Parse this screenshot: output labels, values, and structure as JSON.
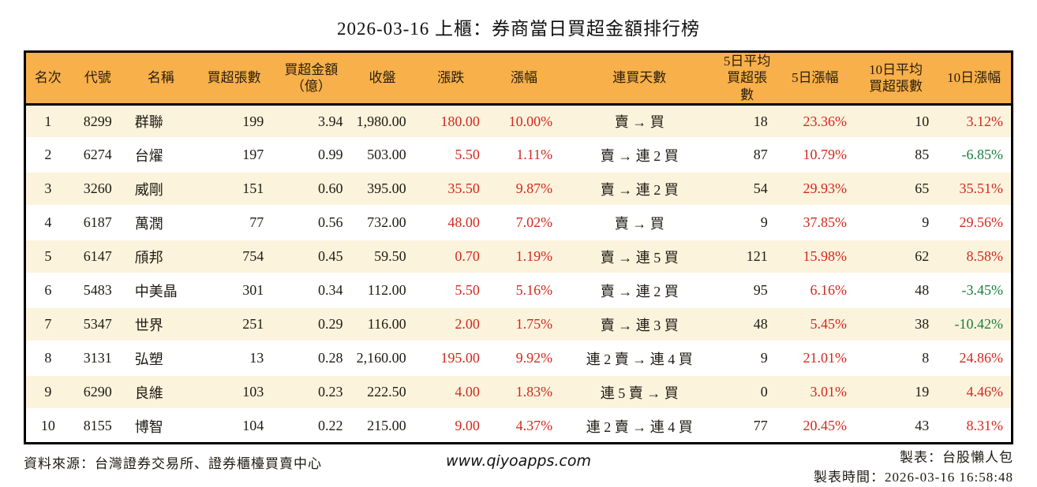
{
  "title": "2026-03-16 上櫃：券商當日買超金額排行榜",
  "colors": {
    "header_bg": "#F7B04A",
    "row_stripe": "#FCF3DD",
    "up_red": "#D2291D",
    "down_green": "#17803C",
    "border_black": "#000000"
  },
  "table": {
    "columns": [
      {
        "id": "rank",
        "lines": [
          "名次"
        ]
      },
      {
        "id": "code",
        "lines": [
          "代號"
        ]
      },
      {
        "id": "name",
        "lines": [
          "名稱"
        ]
      },
      {
        "id": "vol",
        "lines": [
          "買超張數"
        ]
      },
      {
        "id": "amount",
        "lines": [
          "買超金額",
          "（億）"
        ]
      },
      {
        "id": "close",
        "lines": [
          "收盤"
        ]
      },
      {
        "id": "change",
        "lines": [
          "漲跌"
        ]
      },
      {
        "id": "change_pct",
        "lines": [
          "漲幅"
        ]
      },
      {
        "id": "streak",
        "lines": [
          "連買天數"
        ]
      },
      {
        "id": "avg5",
        "lines": [
          "5日平均",
          "買超張數"
        ]
      },
      {
        "id": "pct5",
        "lines": [
          "5日漲幅"
        ]
      },
      {
        "id": "avg10",
        "lines": [
          "10日平均",
          "買超張數"
        ]
      },
      {
        "id": "pct10",
        "lines": [
          "10日漲幅"
        ]
      }
    ],
    "rows": [
      {
        "rank": "1",
        "code": "8299",
        "name": "群聯",
        "vol": "199",
        "amount": "3.94",
        "close": "1,980.00",
        "change": "180.00",
        "change_pct": "10.00%",
        "streak": "賣 → 買",
        "avg5": "18",
        "pct5": "23.36%",
        "avg10": "10",
        "pct10": "3.12%"
      },
      {
        "rank": "2",
        "code": "6274",
        "name": "台燿",
        "vol": "197",
        "amount": "0.99",
        "close": "503.00",
        "change": "5.50",
        "change_pct": "1.11%",
        "streak": "賣 → 連 2 買",
        "avg5": "87",
        "pct5": "10.79%",
        "avg10": "85",
        "pct10": "-6.85%"
      },
      {
        "rank": "3",
        "code": "3260",
        "name": "威剛",
        "vol": "151",
        "amount": "0.60",
        "close": "395.00",
        "change": "35.50",
        "change_pct": "9.87%",
        "streak": "賣 → 連 2 買",
        "avg5": "54",
        "pct5": "29.93%",
        "avg10": "65",
        "pct10": "35.51%"
      },
      {
        "rank": "4",
        "code": "6187",
        "name": "萬潤",
        "vol": "77",
        "amount": "0.56",
        "close": "732.00",
        "change": "48.00",
        "change_pct": "7.02%",
        "streak": "賣 → 買",
        "avg5": "9",
        "pct5": "37.85%",
        "avg10": "9",
        "pct10": "29.56%"
      },
      {
        "rank": "5",
        "code": "6147",
        "name": "頎邦",
        "vol": "754",
        "amount": "0.45",
        "close": "59.50",
        "change": "0.70",
        "change_pct": "1.19%",
        "streak": "賣 → 連 5 買",
        "avg5": "121",
        "pct5": "15.98%",
        "avg10": "62",
        "pct10": "8.58%"
      },
      {
        "rank": "6",
        "code": "5483",
        "name": "中美晶",
        "vol": "301",
        "amount": "0.34",
        "close": "112.00",
        "change": "5.50",
        "change_pct": "5.16%",
        "streak": "賣 → 連 2 買",
        "avg5": "95",
        "pct5": "6.16%",
        "avg10": "48",
        "pct10": "-3.45%"
      },
      {
        "rank": "7",
        "code": "5347",
        "name": "世界",
        "vol": "251",
        "amount": "0.29",
        "close": "116.00",
        "change": "2.00",
        "change_pct": "1.75%",
        "streak": "賣 → 連 3 買",
        "avg5": "48",
        "pct5": "5.45%",
        "avg10": "38",
        "pct10": "-10.42%"
      },
      {
        "rank": "8",
        "code": "3131",
        "name": "弘塑",
        "vol": "13",
        "amount": "0.28",
        "close": "2,160.00",
        "change": "195.00",
        "change_pct": "9.92%",
        "streak": "連 2 賣 → 連 4 買",
        "avg5": "9",
        "pct5": "21.01%",
        "avg10": "8",
        "pct10": "24.86%"
      },
      {
        "rank": "9",
        "code": "6290",
        "name": "良維",
        "vol": "103",
        "amount": "0.23",
        "close": "222.50",
        "change": "4.00",
        "change_pct": "1.83%",
        "streak": "連 5 賣 → 買",
        "avg5": "0",
        "pct5": "3.01%",
        "avg10": "19",
        "pct10": "4.46%"
      },
      {
        "rank": "10",
        "code": "8155",
        "name": "博智",
        "vol": "104",
        "amount": "0.22",
        "close": "215.00",
        "change": "9.00",
        "change_pct": "4.37%",
        "streak": "連 2 賣 → 連 4 買",
        "avg5": "77",
        "pct5": "20.45%",
        "avg10": "43",
        "pct10": "8.31%"
      }
    ]
  },
  "footer": {
    "source": "資料來源：台灣證券交易所、證券櫃檯買賣中心",
    "website": "www.qiyoapps.com",
    "maker": "製表：台股懶人包",
    "timestamp": "製表時間：2026-03-16 16:58:48"
  }
}
